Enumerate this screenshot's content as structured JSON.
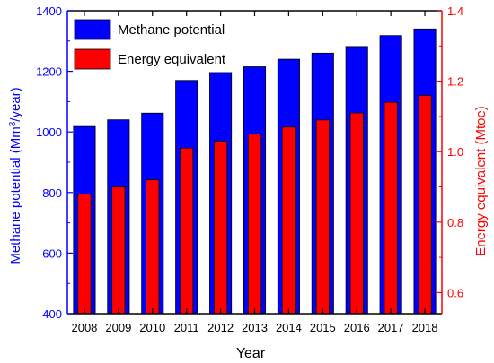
{
  "chart_data": {
    "type": "bar",
    "categories": [
      "2008",
      "2009",
      "2010",
      "2011",
      "2012",
      "2013",
      "2014",
      "2015",
      "2016",
      "2017",
      "2018"
    ],
    "series": [
      {
        "name": "Methane potential",
        "axis": "left",
        "color": "#0000ff",
        "values": [
          1018,
          1040,
          1062,
          1170,
          1196,
          1215,
          1240,
          1260,
          1282,
          1318,
          1340
        ]
      },
      {
        "name": "Energy equivalent",
        "axis": "right",
        "color": "#ff0000",
        "values": [
          0.88,
          0.9,
          0.92,
          1.01,
          1.03,
          1.05,
          1.07,
          1.09,
          1.11,
          1.14,
          1.16
        ]
      }
    ],
    "xlabel": "Year",
    "ylabel_left_prefix": "Methane potential (Mm",
    "ylabel_left_sup": "3",
    "ylabel_left_suffix": "/year)",
    "ylabel_right": "Energy equivalent (Mtoe)",
    "ylim_left": [
      400,
      1400
    ],
    "ylim_right": [
      0.54,
      1.4
    ],
    "yticks_left": [
      400,
      600,
      800,
      1000,
      1200,
      1400
    ],
    "yticks_right": [
      0.6,
      0.8,
      1.0,
      1.2,
      1.4
    ],
    "yticks_right_labels": [
      "0.6",
      "0.8",
      "1.0",
      "1.2",
      "1.4"
    ],
    "grid": false,
    "legend_position": "top-left",
    "axis_colors": {
      "left": "#0000ff",
      "right": "#ff0000",
      "bottom": "#000000"
    }
  }
}
